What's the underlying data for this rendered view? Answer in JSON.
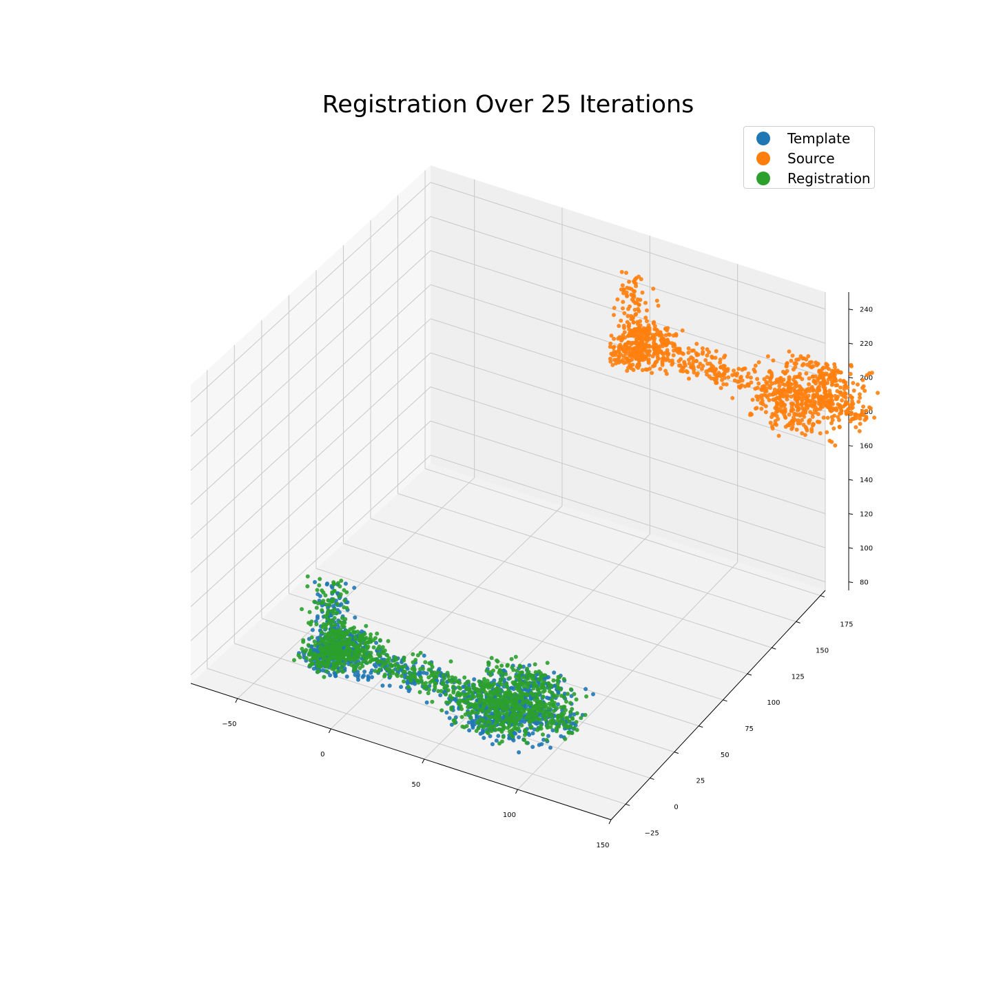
{
  "chart_data": {
    "type": "scatter",
    "projection": "3d",
    "title": "Registration Over 25 Iterations",
    "xlabel": "",
    "ylabel": "",
    "zlabel": "",
    "xlim": [
      -75,
      150
    ],
    "ylim": [
      -40,
      180
    ],
    "zlim": [
      75,
      250
    ],
    "xticks": [
      "−50",
      "0",
      "50",
      "100",
      "150"
    ],
    "yticks": [
      "−25",
      "0",
      "25",
      "50",
      "75",
      "100",
      "125",
      "150",
      "175"
    ],
    "zticks": [
      "80",
      "100",
      "120",
      "140",
      "160",
      "180",
      "200",
      "220",
      "240"
    ],
    "grid": true,
    "legend_position": "top-right",
    "series": [
      {
        "name": "Template",
        "color": "#1f77b4",
        "approx_points": 1200,
        "center": {
          "x": 20,
          "y": 0,
          "z": 90
        },
        "extent": {
          "x": [
            -55,
            95
          ],
          "y": [
            -30,
            30
          ],
          "z": [
            80,
            130
          ]
        }
      },
      {
        "name": "Source",
        "color": "#ff7f0e",
        "approx_points": 1200,
        "center": {
          "x": 95,
          "y": 160,
          "z": 200
        },
        "extent": {
          "x": [
            20,
            170
          ],
          "y": [
            130,
            190
          ],
          "z": [
            160,
            240
          ]
        }
      },
      {
        "name": "Registration",
        "color": "#2ca02c",
        "approx_points": 1200,
        "center": {
          "x": 20,
          "y": 0,
          "z": 92
        },
        "extent": {
          "x": [
            -55,
            95
          ],
          "y": [
            -30,
            30
          ],
          "z": [
            80,
            130
          ]
        }
      }
    ]
  }
}
